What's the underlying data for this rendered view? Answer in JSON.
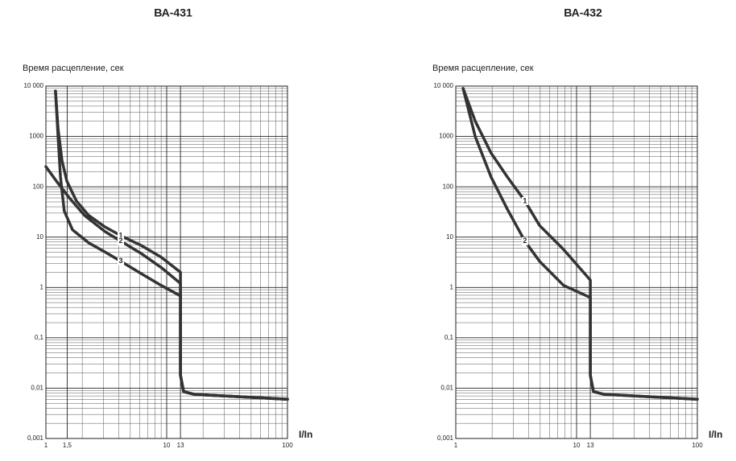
{
  "chart_data": [
    {
      "type": "line",
      "title": "ВА-431",
      "ylabel": "Время расцепление, сек",
      "xlabel": "I/In",
      "xscale": "log",
      "yscale": "log",
      "grid": true,
      "color": "#333333",
      "xlim": [
        1,
        100
      ],
      "ylim": [
        0.001,
        10000
      ],
      "xticks": [
        1,
        {
          "value": 1.5,
          "label": "1,5"
        },
        10,
        13,
        100
      ],
      "yticks": [
        {
          "value": 0.001,
          "label": "0,001"
        },
        {
          "value": 0.01,
          "label": "0,01"
        },
        {
          "value": 0.1,
          "label": "0,1"
        },
        1,
        10,
        100,
        1000,
        {
          "value": 10000,
          "label": "10 000"
        }
      ],
      "series": [
        {
          "name": "1",
          "x": [
            1.2,
            1.26,
            1.36,
            1.49,
            1.79,
            2.26,
            3.07,
            4.17,
            6.1,
            8.99,
            13,
            13,
            13.8,
            17,
            30,
            100
          ],
          "values": [
            8000,
            1420,
            330,
            130,
            52,
            27,
            16,
            10.7,
            6.9,
            4,
            2,
            0.018,
            0.0085,
            0.0075,
            0.007,
            0.006
          ]
        },
        {
          "name": "2",
          "x": [
            1,
            1.22,
            1.54,
            2.09,
            3.07,
            4.17,
            6.1,
            8.99,
            13,
            13,
            13.8,
            17,
            30,
            100
          ],
          "values": [
            250,
            130,
            63,
            27,
            13,
            8.3,
            4.8,
            2.5,
            1.2,
            0.018,
            0.0085,
            0.0075,
            0.007,
            0.006
          ]
        },
        {
          "name": "3",
          "x": [
            1.2,
            1.26,
            1.32,
            1.42,
            1.66,
            2.26,
            3.07,
            4.17,
            6.1,
            8.99,
            13,
            13,
            13.8,
            17,
            30,
            100
          ],
          "values": [
            8000,
            990,
            157,
            33,
            14,
            7.7,
            5.1,
            3.3,
            1.9,
            1.1,
            0.68,
            0.018,
            0.0085,
            0.0075,
            0.007,
            0.006
          ]
        }
      ]
    },
    {
      "type": "line",
      "title": "ВА-432",
      "ylabel": "Время расцепление, сек",
      "xlabel": "I/In",
      "xscale": "log",
      "yscale": "log",
      "grid": true,
      "color": "#333333",
      "xlim": [
        1,
        100
      ],
      "ylim": [
        0.001,
        10000
      ],
      "xticks": [
        1,
        10,
        13,
        100
      ],
      "yticks": [
        {
          "value": 0.001,
          "label": "0,001"
        },
        {
          "value": 0.01,
          "label": "0,01"
        },
        {
          "value": 0.1,
          "label": "0,1"
        },
        1,
        10,
        100,
        1000,
        {
          "value": 10000,
          "label": "10 000"
        }
      ],
      "series": [
        {
          "name": "1",
          "x": [
            1.15,
            1.45,
            1.96,
            2.67,
            3.74,
            4.94,
            7.8,
            13,
            13,
            13.8,
            17,
            30,
            100
          ],
          "values": [
            9000,
            2000,
            470,
            157,
            52,
            17,
            5.7,
            1.4,
            0.018,
            0.0085,
            0.0075,
            0.007,
            0.006
          ]
        },
        {
          "name": "2",
          "x": [
            1.15,
            1.45,
            1.96,
            2.67,
            3.74,
            4.94,
            7.8,
            13,
            13,
            13.8,
            17,
            30,
            100
          ],
          "values": [
            9000,
            990,
            157,
            36,
            8.3,
            3.3,
            1.1,
            0.63,
            0.018,
            0.0085,
            0.0075,
            0.007,
            0.006
          ]
        }
      ]
    }
  ]
}
